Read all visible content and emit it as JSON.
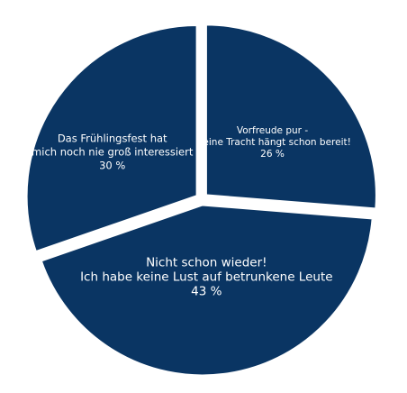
{
  "chart_data": {
    "type": "pie",
    "exploded": true,
    "slice_color": "#0a3563",
    "separator_color": "#ffffff",
    "label_color": "#ffffff",
    "slices": [
      {
        "lines": [
          "Vorfreude pur -",
          "meine Tracht hängt schon bereit!",
          "26 %"
        ],
        "value": 26
      },
      {
        "lines": [
          "Nicht schon wieder!",
          "Ich habe keine Lust auf betrunkene Leute",
          "43 %"
        ],
        "value": 43
      },
      {
        "lines": [
          "Das Frühlingsfest hat",
          "mich noch nie groß interessiert",
          "30 %"
        ],
        "value": 30
      }
    ]
  }
}
